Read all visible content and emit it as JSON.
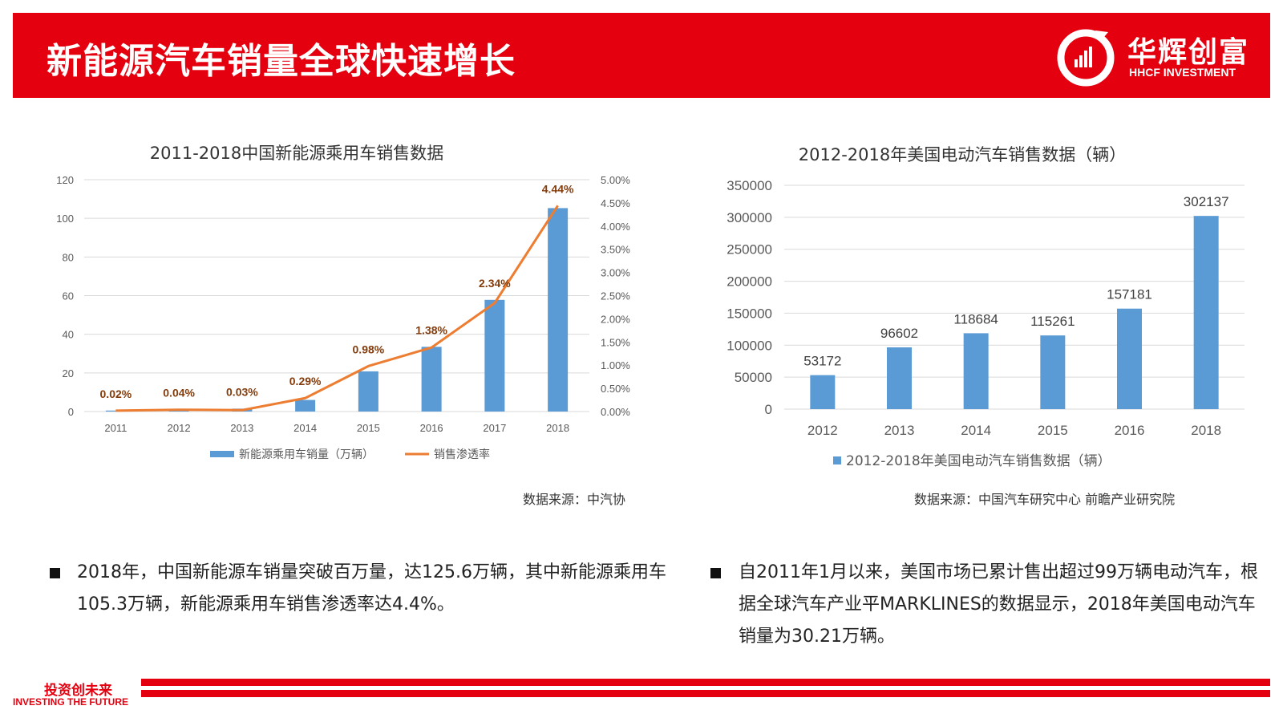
{
  "header": {
    "title": "新能源汽车销量全球快速增长",
    "brand_cn": "华辉创富",
    "brand_en": "HHCF INVESTMENT",
    "color": "#e4000f"
  },
  "chart_data": [
    {
      "type": "bar",
      "title": "2011-2018中国新能源乘用车销售数据",
      "categories": [
        "2011",
        "2012",
        "2013",
        "2014",
        "2015",
        "2016",
        "2017",
        "2018"
      ],
      "series": [
        {
          "name": "新能源乘用车销量（万辆）",
          "type": "bar",
          "axis": "left",
          "color": "#5b9bd5",
          "values": [
            0.5,
            1.0,
            1.5,
            6.0,
            20.8,
            33.5,
            57.8,
            105.3
          ]
        },
        {
          "name": "销售渗透率",
          "type": "line",
          "axis": "right",
          "color": "#ed7d31",
          "values": [
            0.02,
            0.04,
            0.03,
            0.29,
            0.98,
            1.38,
            2.34,
            4.44
          ],
          "labels": [
            "0.02%",
            "0.04%",
            "0.03%",
            "0.29%",
            "0.98%",
            "1.38%",
            "2.34%",
            "4.44%"
          ]
        }
      ],
      "ylim": [
        0,
        120
      ],
      "yticks": [
        "0",
        "20",
        "40",
        "60",
        "80",
        "100",
        "120"
      ],
      "y2lim": [
        0,
        5
      ],
      "y2ticks": [
        "0.00%",
        "0.50%",
        "1.00%",
        "1.50%",
        "2.00%",
        "2.50%",
        "3.00%",
        "3.50%",
        "4.00%",
        "4.50%",
        "5.00%"
      ],
      "grid": true,
      "legend": "bottom"
    },
    {
      "type": "bar",
      "title": "2012-2018年美国电动汽车销售数据（辆）",
      "categories": [
        "2012",
        "2013",
        "2014",
        "2015",
        "2016",
        "2018"
      ],
      "series": [
        {
          "name": "2012-2018年美国电动汽车销售数据（辆）",
          "color": "#5b9bd5",
          "values": [
            53172,
            96602,
            118684,
            115261,
            157181,
            302137
          ],
          "labels": [
            "53172",
            "96602",
            "118684",
            "115261",
            "157181",
            "302137"
          ]
        }
      ],
      "ylim": [
        0,
        350000
      ],
      "yticks": [
        "0",
        "50000",
        "100000",
        "150000",
        "200000",
        "250000",
        "300000",
        "350000"
      ],
      "grid": true,
      "legend": "bottom"
    }
  ],
  "sources": {
    "chart1": "数据来源：中汽协",
    "chart2": "数据来源：中国汽车研究中心   前瞻产业研究院"
  },
  "bullets": [
    "2018年，中国新能源车销量突破百万量，达125.6万辆，其中新能源乘用车105.3万辆，新能源乘用车销售渗透率达4.4%。",
    "自2011年1月以来，美国市场已累计售出超过99万辆电动汽车，根据全球汽车产业平MARKLINES的数据显示，2018年美国电动汽车销量为30.21万辆。"
  ],
  "footer": {
    "slogan_cn": "投资创未来",
    "slogan_en": "INVESTING THE FUTURE"
  }
}
